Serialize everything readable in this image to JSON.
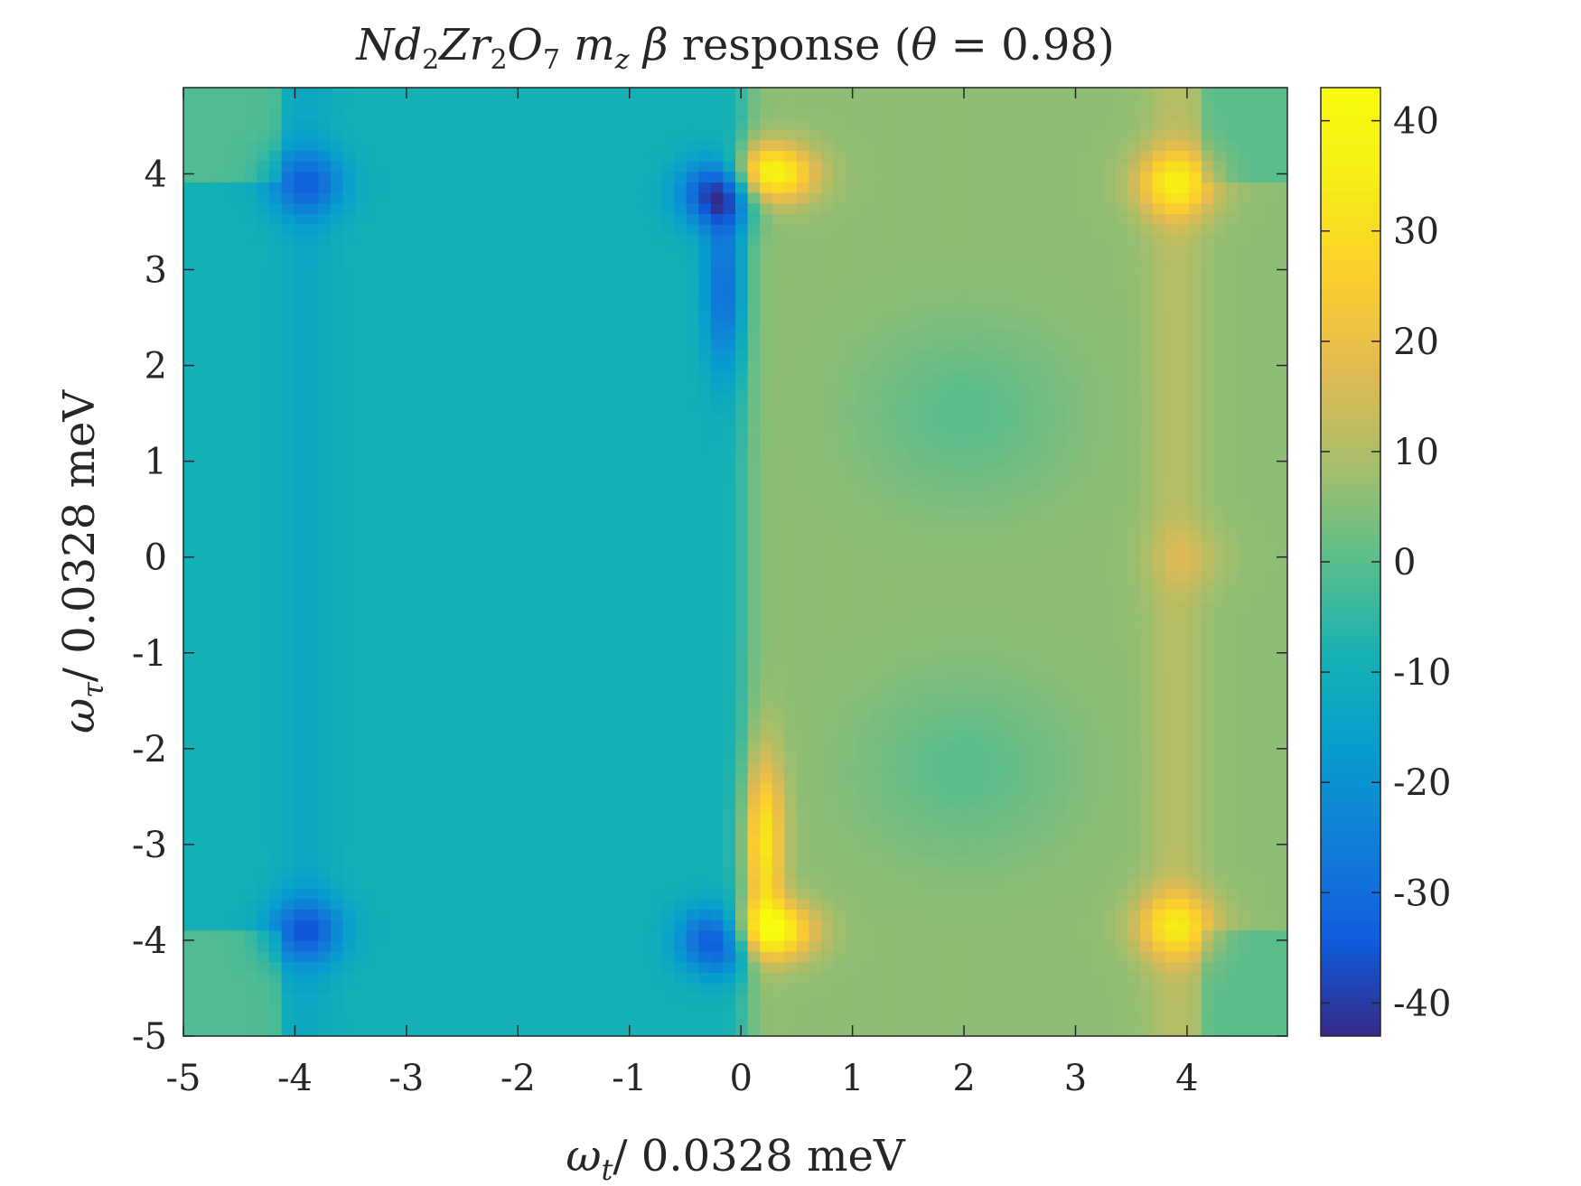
{
  "chart_data": {
    "type": "heatmap",
    "title": {
      "base": "Nd",
      "sub1": "2",
      "mid1": "Zr",
      "sub2": "2",
      "mid2": "O",
      "sub3": "7",
      "sym": "m",
      "symsub": "z",
      "beta": "β",
      "text": "response (",
      "theta": "θ",
      "eq": " = 0.98)"
    },
    "xlabel": {
      "sym": "ω",
      "sub": "t",
      "text": "/ 0.0328 meV"
    },
    "ylabel": {
      "sym": "ω",
      "sub": "τ",
      "text": "/ 0.0328 meV"
    },
    "xlim": [
      -5,
      4.9
    ],
    "ylim": [
      -5,
      4.9
    ],
    "xticks": [
      -5,
      -4,
      -3,
      -2,
      -1,
      0,
      1,
      2,
      3,
      4
    ],
    "xtick_labels": [
      "-5",
      "-4",
      "-3",
      "-2",
      "-1",
      "0",
      "1",
      "2",
      "3",
      "4"
    ],
    "yticks": [
      -5,
      -4,
      -3,
      -2,
      -1,
      0,
      1,
      2,
      3,
      4
    ],
    "ytick_labels": [
      "-5",
      "-4",
      "-3",
      "-2",
      "-1",
      "0",
      "1",
      "2",
      "3",
      "4"
    ],
    "colorbar": {
      "range": [
        -43,
        43
      ],
      "ticks": [
        -40,
        -30,
        -20,
        -10,
        0,
        10,
        20,
        30,
        40
      ],
      "tick_labels": [
        "-40",
        "-30",
        "-20",
        "-10",
        "0",
        "10",
        "20",
        "30",
        "40"
      ],
      "colormap": "parula"
    },
    "field": {
      "background": {
        "left": -9,
        "right": 6,
        "edge_bands": 1
      },
      "features": [
        {
          "x": 0.25,
          "y": 4.0,
          "value": 42,
          "kind": "peak"
        },
        {
          "x": 0.25,
          "y": -3.9,
          "value": 42,
          "kind": "peak"
        },
        {
          "x": 0.2,
          "y": -3.0,
          "value": 34,
          "kind": "ridge"
        },
        {
          "x": 3.9,
          "y": 3.9,
          "value": 32,
          "kind": "peak"
        },
        {
          "x": 3.9,
          "y": -3.85,
          "value": 30,
          "kind": "peak"
        },
        {
          "x": 4.0,
          "y": 0.0,
          "value": 12,
          "kind": "peak"
        },
        {
          "x": -0.2,
          "y": 3.8,
          "value": -42,
          "kind": "trough"
        },
        {
          "x": -0.15,
          "y": 2.8,
          "value": -30,
          "kind": "ridge"
        },
        {
          "x": -0.2,
          "y": -4.0,
          "value": -40,
          "kind": "trough"
        },
        {
          "x": -3.9,
          "y": 3.9,
          "value": -30,
          "kind": "trough"
        },
        {
          "x": -3.9,
          "y": -3.9,
          "value": -32,
          "kind": "trough"
        },
        {
          "x": 2.0,
          "y": 1.5,
          "value": 0,
          "kind": "valley"
        },
        {
          "x": 2.0,
          "y": -2.2,
          "value": 0,
          "kind": "valley"
        }
      ]
    }
  },
  "colors": {
    "axis": "#262626",
    "background": "#ffffff"
  }
}
